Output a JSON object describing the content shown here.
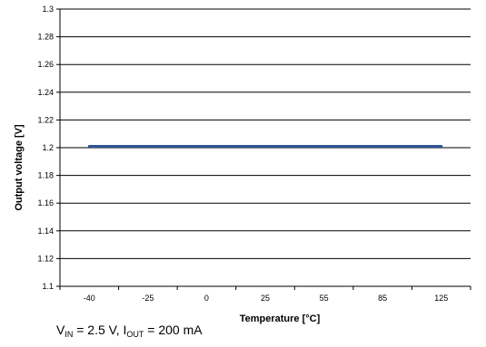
{
  "chart_data": {
    "type": "line",
    "xlabel": "Temperature [°C]",
    "ylabel": "Output voltage [V]",
    "categories": [
      "-40",
      "-25",
      "0",
      "25",
      "55",
      "85",
      "125"
    ],
    "series": [
      {
        "values": [
          1.201,
          1.201,
          1.201,
          1.201,
          1.201,
          1.201,
          1.201
        ],
        "color": "#2f5597"
      }
    ],
    "ylim": [
      1.1,
      1.3
    ],
    "yticks": [
      "1.1",
      "1.12",
      "1.14",
      "1.16",
      "1.18",
      "1.2",
      "1.22",
      "1.24",
      "1.26",
      "1.28",
      "1.3"
    ],
    "grid": true,
    "caption": {
      "v_main": "V",
      "v_sub": "IN",
      "v_rest": " = 2.5 V, ",
      "i_main": "I",
      "i_sub": "OUT",
      "i_rest": " = 200 mA"
    }
  }
}
